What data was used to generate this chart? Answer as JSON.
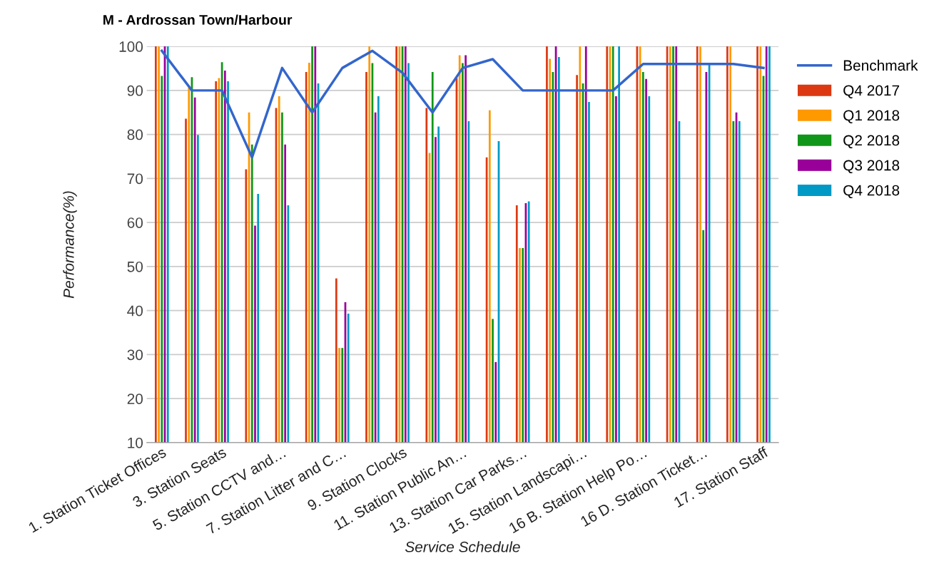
{
  "chart_data": {
    "type": "bar",
    "title": "M - Ardrossan Town/Harbour",
    "xlabel": "Service Schedule",
    "ylabel": "Performance(%)",
    "categories": [
      "1. Station Ticket Offices",
      null,
      "3. Station Seats",
      null,
      "5. Station CCTV and…",
      null,
      "7. Station Litter and C…",
      null,
      "9. Station Clocks",
      null,
      "11. Station Public An…",
      null,
      "13. Station Car Parks…",
      null,
      "15. Station Landscapi…",
      null,
      "16 B. Station Help Po…",
      null,
      "16 D. Station Ticket…",
      null,
      "17. Station Staff"
    ],
    "series": [
      {
        "name": "Benchmark",
        "type": "line",
        "color": "#3366cc",
        "values": [
          99,
          90,
          90,
          74.8,
          95.1,
          85,
          95.1,
          99,
          94,
          85,
          95.1,
          97.1,
          90,
          90,
          90,
          90,
          96,
          96,
          96,
          96,
          95.1
        ]
      },
      {
        "name": "Q4 2017",
        "color": "#dc3912",
        "values": [
          100,
          83.6,
          92.1,
          72.1,
          86,
          94.2,
          47.3,
          94.2,
          100,
          86,
          92.8,
          74.8,
          63.9,
          100,
          93.5,
          100,
          100,
          100,
          100,
          100,
          100
        ]
      },
      {
        "name": "Q1 2018",
        "color": "#ff9900",
        "values": [
          100,
          90.6,
          92.8,
          85,
          88.7,
          96.3,
          31.5,
          100,
          100,
          75.8,
          98,
          85.5,
          54.2,
          97.2,
          100,
          100,
          100,
          100,
          100,
          100,
          100
        ]
      },
      {
        "name": "Q2 2018",
        "color": "#109618",
        "values": [
          93.3,
          93,
          96.4,
          77.7,
          85,
          100,
          31.5,
          96.2,
          100,
          94.2,
          96.2,
          38.1,
          54.2,
          94.2,
          91.6,
          100,
          94.2,
          100,
          58.3,
          83,
          93.3
        ]
      },
      {
        "name": "Q3 2018",
        "color": "#990099",
        "values": [
          100,
          88.4,
          94.5,
          59.3,
          77.7,
          100,
          41.9,
          85,
          100,
          79.4,
          98,
          28.3,
          64.4,
          100,
          100,
          88.7,
          92.6,
          100,
          94.2,
          85,
          100
        ]
      },
      {
        "name": "Q4 2018",
        "color": "#0099c6",
        "values": [
          100,
          79.9,
          92.1,
          66.5,
          63.9,
          91.6,
          39.3,
          88.7,
          96.2,
          81.8,
          83,
          78.5,
          64.8,
          97.6,
          87.4,
          100,
          88.7,
          83,
          95.9,
          83,
          100
        ]
      }
    ],
    "ylim": [
      10,
      100
    ],
    "yticks": [
      10,
      20,
      30,
      40,
      50,
      60,
      70,
      80,
      90,
      100
    ],
    "grid": "y",
    "legend": "top right"
  }
}
